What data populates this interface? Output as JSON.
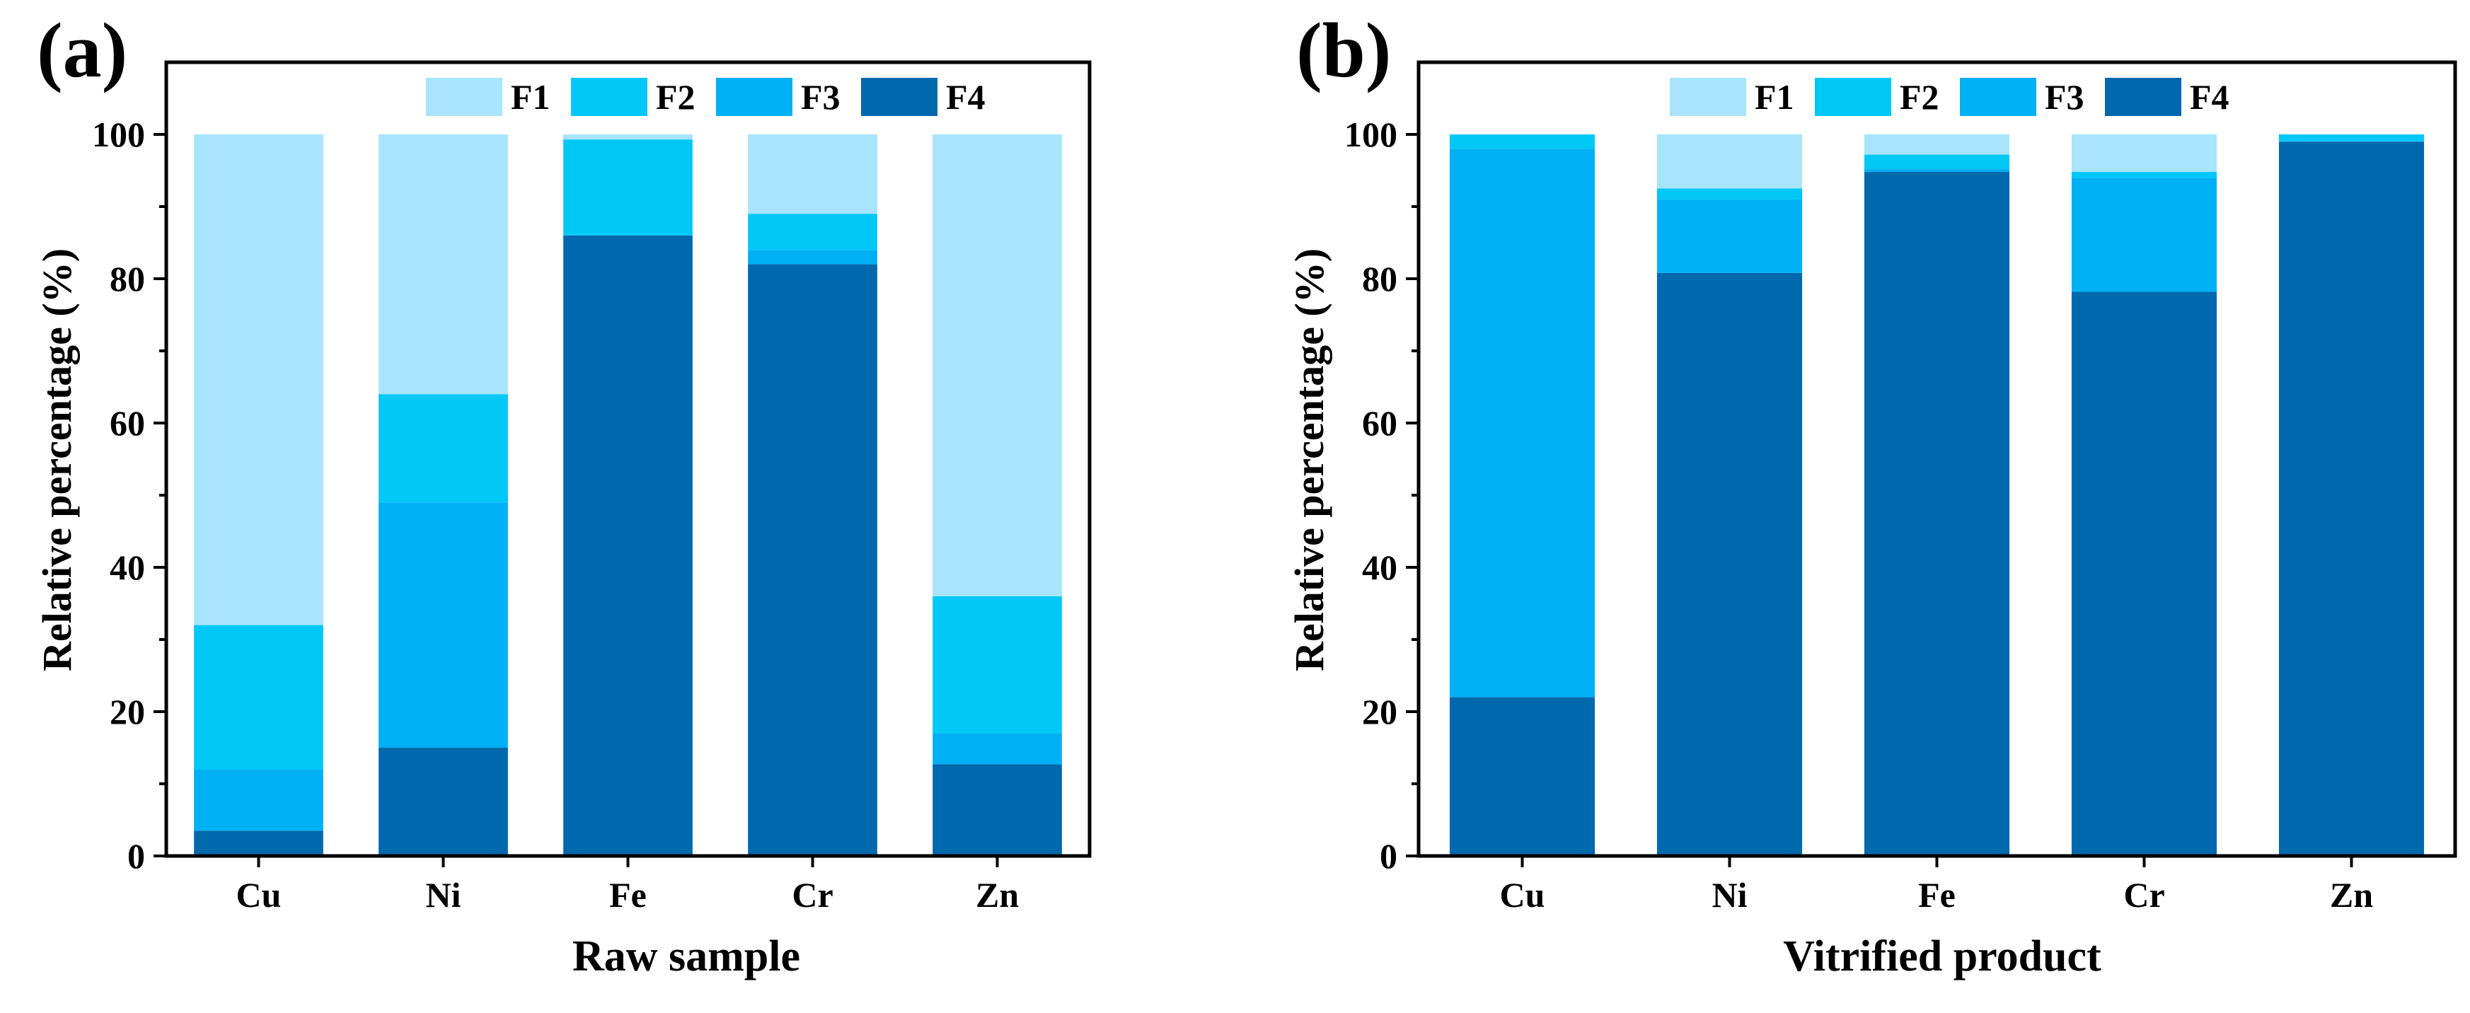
{
  "figure": {
    "legend_labels": [
      "F1",
      "F2",
      "F3",
      "F4"
    ]
  },
  "colors": {
    "F1": "#A8E4FB",
    "F2": "#00C8F6",
    "F3": "#00B0F4",
    "F4": "#0068AC"
  },
  "chart_data": [
    {
      "type": "bar",
      "stacked": true,
      "panel_label": "(a)",
      "title": "",
      "xlabel": "Raw sample",
      "ylabel": "Relative percentage (%)",
      "categories": [
        "Cu",
        "Ni",
        "Fe",
        "Cr",
        "Zn"
      ],
      "ylim": [
        0,
        110
      ],
      "yticks": [
        0,
        20,
        40,
        60,
        80,
        100
      ],
      "legend_position": "top-center",
      "series": [
        {
          "name": "F4",
          "values": [
            3.5,
            15.0,
            86.0,
            82.0,
            12.7
          ]
        },
        {
          "name": "F3",
          "values": [
            8.5,
            34.0,
            0.0,
            2.0,
            4.3
          ]
        },
        {
          "name": "F2",
          "values": [
            20.0,
            15.0,
            13.3,
            5.0,
            19.0
          ]
        },
        {
          "name": "F1",
          "values": [
            68.0,
            36.0,
            0.7,
            11.0,
            64.0
          ]
        }
      ]
    },
    {
      "type": "bar",
      "stacked": true,
      "panel_label": "(b)",
      "title": "",
      "xlabel": "Vitrified product",
      "ylabel": "Relative percentage (%)",
      "categories": [
        "Cu",
        "Ni",
        "Fe",
        "Cr",
        "Zn"
      ],
      "ylim": [
        0,
        110
      ],
      "yticks": [
        0,
        20,
        40,
        60,
        80,
        100
      ],
      "legend_position": "top-center",
      "series": [
        {
          "name": "F4",
          "values": [
            22.0,
            80.8,
            94.8,
            78.2,
            99.0
          ]
        },
        {
          "name": "F3",
          "values": [
            76.0,
            10.2,
            0.4,
            15.8,
            0.0
          ]
        },
        {
          "name": "F2",
          "values": [
            2.0,
            1.5,
            2.0,
            0.8,
            1.0
          ]
        },
        {
          "name": "F1",
          "values": [
            0.0,
            7.5,
            2.8,
            5.2,
            0.0
          ]
        }
      ]
    }
  ]
}
